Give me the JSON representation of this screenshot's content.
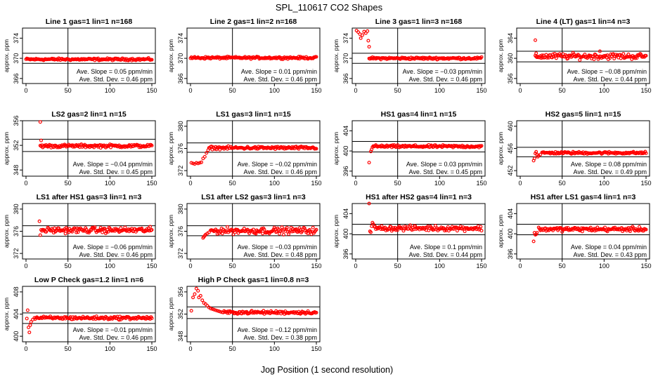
{
  "figure": {
    "title": "SPL_110617  CO2 Shapes",
    "xlabel": "Jog Position (1 second resolution)"
  },
  "colors": {
    "points": "#ff0000",
    "axes": "#000000"
  },
  "chart_data": [
    {
      "type": "scatter",
      "title": "Line 1 gas=1 lin=1 n=168",
      "ylabel": "approx. ppm",
      "xlim": [
        0,
        150
      ],
      "ylim": [
        365,
        376
      ],
      "yticks": [
        366,
        370,
        374
      ],
      "xticks": [
        0,
        50,
        100,
        150
      ],
      "vline": 50,
      "hlines": [
        371,
        369
      ],
      "x_start": 0,
      "x_end": 150,
      "level": 369.8,
      "noise": 0.15,
      "spikes": [],
      "slope_label": "Ave. Slope =  0.05  ppm/min",
      "std_label": "Ave. Std. Dev. =  0.46  ppm"
    },
    {
      "type": "scatter",
      "title": "Line 2 gas=1 lin=2 n=168",
      "ylabel": "approx. ppm",
      "xlim": [
        0,
        150
      ],
      "ylim": [
        365,
        376
      ],
      "yticks": [
        366,
        370,
        374
      ],
      "xticks": [
        0,
        50,
        100,
        150
      ],
      "vline": 50,
      "hlines": [],
      "x_start": 0,
      "x_end": 150,
      "level": 370.1,
      "noise": 0.15,
      "spikes": [],
      "slope_label": "Ave. Slope =  0.01  ppm/min",
      "std_label": "Ave. Std. Dev. =  0.46  ppm"
    },
    {
      "type": "scatter",
      "title": "Line 3 gas=1 lin=3 n=168",
      "ylabel": "approx. ppm",
      "xlim": [
        0,
        150
      ],
      "ylim": [
        365,
        376
      ],
      "yticks": [
        366,
        370,
        374
      ],
      "xticks": [
        0,
        50,
        100,
        150
      ],
      "vline": 50,
      "hlines": [
        371,
        369
      ],
      "x_start": 16,
      "x_end": 150,
      "level": 370.0,
      "noise": 0.15,
      "spikes": [
        [
          1,
          375.5
        ],
        [
          3,
          375.2
        ],
        [
          5,
          374.8
        ],
        [
          6,
          374.0
        ],
        [
          8,
          374.6
        ],
        [
          10,
          375.3
        ],
        [
          12,
          375.0
        ],
        [
          14,
          375.4
        ],
        [
          15,
          373.5
        ],
        [
          16,
          372.3
        ]
      ],
      "slope_label": "Ave. Slope = −0.03  ppm/min",
      "std_label": "Ave. Std. Dev. =  0.46  ppm"
    },
    {
      "type": "scatter",
      "title": "Line 4 (LT) gas=1 lin=4 n=3",
      "ylabel": "approx. ppm",
      "xlim": [
        0,
        150
      ],
      "ylim": [
        355,
        366
      ],
      "yticks": [
        356,
        360,
        364
      ],
      "xticks": [
        0,
        50,
        100,
        150
      ],
      "vline": 50,
      "hlines": [
        361.4,
        359.3
      ],
      "x_start": 18,
      "x_end": 150,
      "level": 360.4,
      "noise": 0.4,
      "spikes": [
        [
          18,
          363.6
        ],
        [
          19,
          361.0
        ],
        [
          95,
          361.4
        ]
      ],
      "slope_label": "Ave. Slope = −0.08  ppm/min",
      "std_label": "Ave. Std. Dev. =  0.44  ppm"
    },
    {
      "type": "scatter",
      "title": "LS2 gas=2 lin=1 n=15",
      "ylabel": "approx. ppm",
      "xlim": [
        0,
        150
      ],
      "ylim": [
        347,
        356
      ],
      "yticks": [
        348,
        352,
        356
      ],
      "xticks": [
        0,
        50,
        100,
        150
      ],
      "vline": 50,
      "hlines": [
        353,
        351
      ],
      "x_start": 17,
      "x_end": 150,
      "level": 351.9,
      "noise": 0.18,
      "spikes": [
        [
          17,
          355.8
        ],
        [
          18,
          352.8
        ]
      ],
      "slope_label": "Ave. Slope = −0.04  ppm/min",
      "std_label": "Ave. Std. Dev. =  0.45  ppm"
    },
    {
      "type": "scatter",
      "title": "LS1 gas=3 lin=1 n=15",
      "ylabel": "approx. ppm",
      "xlim": [
        0,
        150
      ],
      "ylim": [
        371,
        381
      ],
      "yticks": [
        372,
        376,
        380
      ],
      "xticks": [
        0,
        50,
        100,
        150
      ],
      "vline": 50,
      "hlines": [
        377,
        375.3
      ],
      "x_start": 22,
      "x_end": 150,
      "level": 376.1,
      "noise": 0.18,
      "spikes": [
        [
          1,
          373.4
        ],
        [
          3,
          373.3
        ],
        [
          5,
          373.2
        ],
        [
          7,
          373.4
        ],
        [
          9,
          373.3
        ],
        [
          11,
          373.4
        ],
        [
          13,
          373.5
        ],
        [
          15,
          374.2
        ],
        [
          17,
          374.5
        ],
        [
          19,
          375.2
        ],
        [
          21,
          375.7
        ]
      ],
      "slope_label": "Ave. Slope = −0.02  ppm/min",
      "std_label": "Ave. Std. Dev. =  0.46  ppm"
    },
    {
      "type": "scatter",
      "title": "HS1 gas=4 lin=1 n=15",
      "ylabel": "approx. ppm",
      "xlim": [
        0,
        150
      ],
      "ylim": [
        395,
        406
      ],
      "yticks": [
        396,
        400,
        404
      ],
      "xticks": [
        0,
        50,
        100,
        150
      ],
      "vline": 50,
      "hlines": [
        401.9,
        399.8
      ],
      "x_start": 20,
      "x_end": 150,
      "level": 400.9,
      "noise": 0.18,
      "spikes": [
        [
          16,
          397.7
        ],
        [
          18,
          399.9
        ],
        [
          19,
          400.3
        ]
      ],
      "slope_label": "Ave. Slope =  0.03  ppm/min",
      "std_label": "Ave. Std. Dev. =  0.45  ppm"
    },
    {
      "type": "scatter",
      "title": "HS2 gas=5 lin=1 n=15",
      "ylabel": "approx. ppm",
      "xlim": [
        0,
        150
      ],
      "ylim": [
        451,
        461
      ],
      "yticks": [
        452,
        456,
        460
      ],
      "xticks": [
        0,
        50,
        100,
        150
      ],
      "vline": 50,
      "hlines": [
        456.2,
        454.5
      ],
      "x_start": 26,
      "x_end": 150,
      "level": 455.2,
      "noise": 0.15,
      "spikes": [
        [
          16,
          453.8
        ],
        [
          17,
          454.2
        ],
        [
          18,
          455.1
        ],
        [
          19,
          455.4
        ],
        [
          20,
          454.9
        ],
        [
          21,
          454.5
        ],
        [
          22,
          454.7
        ],
        [
          24,
          454.9
        ]
      ],
      "slope_label": "Ave. Slope =  0.08  ppm/min",
      "std_label": "Ave. Std. Dev. =  0.49  ppm"
    },
    {
      "type": "scatter",
      "title": "LS1 after HS1 gas=3 lin=1 n=3",
      "ylabel": "approx. ppm",
      "xlim": [
        0,
        150
      ],
      "ylim": [
        371,
        381
      ],
      "yticks": [
        372,
        376,
        380
      ],
      "xticks": [
        0,
        50,
        100,
        150
      ],
      "vline": 50,
      "hlines": [
        377,
        375.1
      ],
      "x_start": 18,
      "x_end": 150,
      "level": 376.2,
      "noise": 0.35,
      "spikes": [
        [
          16,
          377.8
        ],
        [
          17,
          375.3
        ]
      ],
      "slope_label": "Ave. Slope = −0.06  ppm/min",
      "std_label": "Ave. Std. Dev. =  0.46  ppm"
    },
    {
      "type": "scatter",
      "title": "LS1 after LS2 gas=3 lin=1 n=3",
      "ylabel": "approx. ppm",
      "xlim": [
        0,
        150
      ],
      "ylim": [
        371,
        381
      ],
      "yticks": [
        372,
        376,
        380
      ],
      "xticks": [
        0,
        50,
        100,
        150
      ],
      "vline": 50,
      "hlines": [
        377,
        375.2
      ],
      "x_start": 24,
      "x_end": 150,
      "level": 376.1,
      "noise": 0.4,
      "spikes": [
        [
          15,
          374.8
        ],
        [
          16,
          375.0
        ],
        [
          17,
          375.2
        ],
        [
          18,
          375.4
        ],
        [
          20,
          375.6
        ],
        [
          22,
          375.8
        ]
      ],
      "slope_label": "Ave. Slope = −0.03  ppm/min",
      "std_label": "Ave. Std. Dev. =  0.48  ppm"
    },
    {
      "type": "scatter",
      "title": "HS1 after HS2 gas=4 lin=1 n=3",
      "ylabel": "approx. ppm",
      "xlim": [
        0,
        150
      ],
      "ylim": [
        395,
        406
      ],
      "yticks": [
        396,
        400,
        404
      ],
      "xticks": [
        0,
        50,
        100,
        150
      ],
      "vline": 50,
      "hlines": [
        401.9,
        399.8
      ],
      "x_start": 22,
      "x_end": 150,
      "level": 401.1,
      "noise": 0.35,
      "spikes": [
        [
          16,
          406
        ],
        [
          17,
          400.5
        ],
        [
          18,
          400.3
        ],
        [
          19,
          401.5
        ],
        [
          20,
          402.2
        ],
        [
          21,
          401.9
        ]
      ],
      "slope_label": "Ave. Slope =  0.1  ppm/min",
      "std_label": "Ave. Std. Dev. =  0.44  ppm"
    },
    {
      "type": "scatter",
      "title": "HS1 after LS1 gas=4 lin=1 n=3",
      "ylabel": "approx. ppm",
      "xlim": [
        0,
        150
      ],
      "ylim": [
        395,
        406
      ],
      "yticks": [
        396,
        400,
        404
      ],
      "xticks": [
        0,
        50,
        100,
        150
      ],
      "vline": 50,
      "hlines": [
        401.9,
        399.8
      ],
      "x_start": 22,
      "x_end": 150,
      "level": 400.9,
      "noise": 0.3,
      "spikes": [
        [
          16,
          398.5
        ],
        [
          17,
          400.2
        ],
        [
          18,
          399.8
        ],
        [
          19,
          399.9
        ],
        [
          20,
          400.2
        ]
      ],
      "slope_label": "Ave. Slope =  0.04  ppm/min",
      "std_label": "Ave. Std. Dev. =  0.43  ppm"
    },
    {
      "type": "scatter",
      "title": "Low P Check gas=1.2 lin=1 n=6",
      "ylabel": "approx. ppm",
      "xlim": [
        0,
        150
      ],
      "ylim": [
        399,
        409
      ],
      "yticks": [
        400,
        404,
        408
      ],
      "xticks": [
        0,
        50,
        100,
        150
      ],
      "vline": 50,
      "hlines": [
        404.2,
        402.3
      ],
      "x_start": 10,
      "x_end": 150,
      "level": 403.3,
      "noise": 0.2,
      "spikes": [
        [
          1,
          403.2
        ],
        [
          2,
          404.7
        ],
        [
          3,
          401.6
        ],
        [
          4,
          400.7
        ],
        [
          5,
          402.0
        ],
        [
          6,
          402.6
        ],
        [
          8,
          403.0
        ]
      ],
      "slope_label": "Ave. Slope = −0.01  ppm/min",
      "std_label": "Ave. Std. Dev. =  0.46  ppm"
    },
    {
      "type": "scatter",
      "title": "High P Check gas=1 lin=0.8 n=3",
      "ylabel": "approx. ppm",
      "xlim": [
        0,
        150
      ],
      "ylim": [
        347,
        357
      ],
      "yticks": [
        348,
        352,
        356
      ],
      "xticks": [
        0,
        50,
        100,
        150
      ],
      "vline": 50,
      "hlines": [
        353.3,
        351.2
      ],
      "x_start": 38,
      "x_end": 150,
      "level": 352.3,
      "noise": 0.2,
      "spikes": [
        [
          1,
          352.6
        ],
        [
          3,
          355.0
        ],
        [
          5,
          355.6
        ],
        [
          7,
          356.6
        ],
        [
          9,
          356.2
        ],
        [
          10,
          355.0
        ],
        [
          12,
          355.3
        ],
        [
          14,
          354.5
        ],
        [
          16,
          354.0
        ],
        [
          18,
          353.8
        ],
        [
          20,
          353.5
        ],
        [
          22,
          353.2
        ],
        [
          24,
          353.0
        ],
        [
          26,
          352.9
        ],
        [
          28,
          352.8
        ],
        [
          30,
          352.7
        ],
        [
          32,
          352.6
        ],
        [
          34,
          352.5
        ],
        [
          36,
          352.4
        ]
      ],
      "slope_label": "Ave. Slope = −0.12  ppm/min",
      "std_label": "Ave. Std. Dev. =  0.38  ppm"
    }
  ]
}
